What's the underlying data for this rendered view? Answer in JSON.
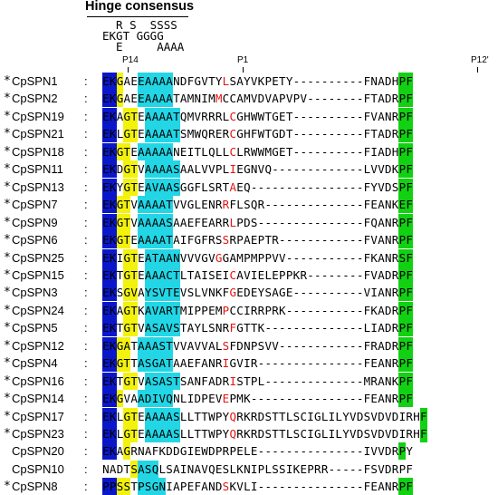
{
  "title": "Hinge consensus",
  "consensus_lines": [
    "  R S  SSSS",
    "EKGT GGGG",
    "  E     AAAA"
  ],
  "position_labels": [
    {
      "text": "P14",
      "col": 3
    },
    {
      "text": "P1",
      "col": 19
    },
    {
      "text": "P12'",
      "col": 52
    }
  ],
  "alignment": [
    {
      "star": "*",
      "name": "CpSPN1",
      "seq": "EKGAEEAAAANDFGVTYLSAYVKPETY----------FNADHPF"
    },
    {
      "star": "*",
      "name": "CpSPN2",
      "seq": "EKGAEEAAAATAMNIMMCCAMVDVAPVPV--------FTADRPF"
    },
    {
      "star": "*",
      "name": "CpSPN19",
      "seq": "EKAGTEAAAATQMVRRRLCGHWWTGET----------FVANRPF"
    },
    {
      "star": "*",
      "name": "CpSPN21",
      "seq": "EKLGTEAAAATSMWQRERCGHFWTGDT----------FTADRPF"
    },
    {
      "star": "*",
      "name": "CpSPN18",
      "seq": "EKGTEAAAAANEITLQLLCLRWWMGET----------FIADHPF"
    },
    {
      "star": "*",
      "name": "CpSPN11",
      "seq": "EKDGTVAAAASAALVVPLIEGNVQ-------------LVVDKPF"
    },
    {
      "star": "*",
      "name": "CpSPN13",
      "seq": "EKYGTEAVAASGGFLSRTAEQ----------------FYVDSPF"
    },
    {
      "star": "*",
      "name": "CpSPN7",
      "seq": "EKGTVAAAATVVGLENRRFLSQR--------------FEANKEF"
    },
    {
      "star": "*",
      "name": "CpSPN9",
      "seq": "EKGTVAAAASAAEFEARRLPDS---------------FQANRPF"
    },
    {
      "star": "*",
      "name": "CpSPN6",
      "seq": "EKGTEAAAATAIFGFRSSRPAEPTR------------FVANRPF"
    },
    {
      "star": "*",
      "name": "CpSPN25",
      "seq": "EKIGTEATAANVVVGVGGAMPMPPVV-----------FKANRSF"
    },
    {
      "star": "*",
      "name": "CpSPN15",
      "seq": "EKTGTEAAACTLTAISEICAVIELEPPKR--------FVADRPF"
    },
    {
      "star": "*",
      "name": "CpSPN3",
      "seq": "EKSGVAYSVTEVSLVNKFGEDEYSAGE----------VIANRPF"
    },
    {
      "star": "*",
      "name": "CpSPN24",
      "seq": "EKAGTKAVARTMIPPEMPCCIRRPRK-----------FKADRPF"
    },
    {
      "star": "*",
      "name": "CpSPN5",
      "seq": "EKTGTVASAVSTAYLSNRFGTTK--------------LIADRPF"
    },
    {
      "star": "*",
      "name": "CpSPN12",
      "seq": "EKGATAAASTVVAVVALSFDNPSVV------------FRADRPF"
    },
    {
      "star": "*",
      "name": "CpSPN4",
      "seq": "EKGTTASGATAAEFANRIGVIR---------------FEANRPF"
    },
    {
      "star": "*",
      "name": "CpSPN16",
      "seq": "EKTGTVASASTSANFADRISTPL--------------MRANKPF"
    },
    {
      "star": "*",
      "name": "CpSPN14",
      "seq": "EKGVAADIVQNLIDPEVEPMK----------------FEANRPF"
    },
    {
      "star": "*",
      "name": "CpSPN17",
      "seq": "EKLGTEAAAASLLTTWPYQRKRDSTTLSCIGLILYVDSVDVDIRHF"
    },
    {
      "star": "*",
      "name": "CpSPN23",
      "seq": "EKLGTEAAAASLLTTWPYQRKRDSTTLSCIGLILYVDSVDVDIRHF"
    },
    {
      "star": "",
      "name": "CpSPN20",
      "seq": "EKAGRNAFKDDGIEWDPRPELE---------------IVVDRPY"
    },
    {
      "star": "",
      "name": "CpSPN10",
      "seq": "NADTSASQLSAINAVQESLKNIPLSSIKEPRR-----FSVDRPF"
    },
    {
      "star": "*",
      "name": "CpSPN8",
      "seq": "PPSSTPSGNIAPEFANDSKVLI---------------FEANRPF"
    }
  ],
  "colors": {
    "hinge_blue": "#0a17c9",
    "hinge_yellow": "#f2f20d",
    "hinge_cyan": "#22d6e6",
    "terminal_green": "#12d112",
    "p1_red": "#e51414"
  }
}
